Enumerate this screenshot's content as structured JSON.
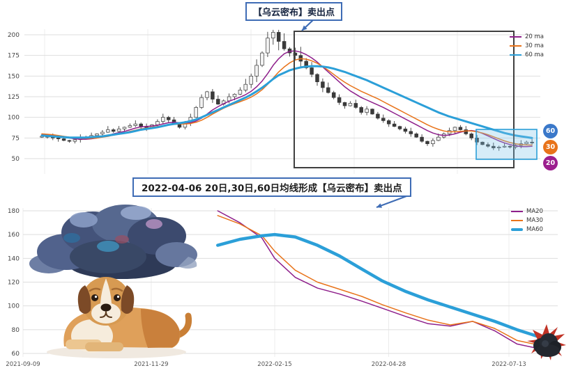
{
  "callouts": {
    "top": "【乌云密布】卖出点",
    "mid": "2022-04-06 20日,30日,60日均线形成【乌云密布】卖出点"
  },
  "badges": [
    {
      "label": "60",
      "color": "#3a78c9"
    },
    {
      "label": "30",
      "color": "#e8731a"
    },
    {
      "label": "20",
      "color": "#9c1f8e"
    }
  ],
  "colors": {
    "annotation": "#3e6cb5",
    "grid": "#dedede",
    "grid_light": "#ececec",
    "axis_text": "#444444",
    "box_outline": "#3f3f3f",
    "highlight_fill": "#7fc4e8"
  },
  "chart_data": [
    {
      "type": "candlestick",
      "title": "",
      "y_ticks": [
        200,
        175,
        150,
        125,
        100,
        75,
        50
      ],
      "ylim": [
        40,
        210
      ],
      "grid": true,
      "legend_position": "top-right",
      "candle_up_color": "#f2f2f2",
      "candle_down_color": "#3a3a3a",
      "highlight_box_color": "#2b9fd8",
      "series": [
        {
          "name": "price",
          "kind": "candles",
          "values": [
            77,
            76,
            75,
            74,
            72,
            71,
            73,
            75,
            76,
            78,
            80,
            82,
            85,
            83,
            86,
            88,
            90,
            92,
            89,
            87,
            91,
            95,
            100,
            97,
            92,
            88,
            93,
            100,
            112,
            124,
            131,
            122,
            116,
            120,
            125,
            128,
            133,
            140,
            150,
            163,
            178,
            196,
            203,
            192,
            183,
            178,
            175,
            168,
            160,
            152,
            143,
            136,
            130,
            124,
            118,
            114,
            117,
            112,
            106,
            110,
            104,
            99,
            96,
            92,
            89,
            86,
            83,
            80,
            76,
            71,
            68,
            72,
            76,
            80,
            84,
            88,
            85,
            80,
            75,
            70,
            67,
            65,
            63,
            64,
            65,
            64,
            66,
            68,
            70,
            69
          ]
        },
        {
          "name": "20 ma",
          "color": "#8e1f8b",
          "values": [
            79,
            78.5,
            78,
            77,
            76,
            75,
            74,
            73.5,
            73.5,
            74,
            75,
            76.5,
            78,
            80,
            81.5,
            83,
            85,
            87,
            88.5,
            89,
            89.5,
            90.5,
            92,
            93.5,
            94,
            93.5,
            93,
            93.5,
            95.5,
            99,
            104,
            109,
            113,
            116.5,
            119.5,
            122,
            124.5,
            127.5,
            131.5,
            137,
            144,
            153,
            163,
            171,
            177,
            180,
            180.5,
            179,
            176,
            172,
            167,
            161,
            155,
            149,
            143,
            137,
            132,
            128,
            124,
            121,
            118,
            115,
            112,
            108.5,
            105,
            101.5,
            98,
            94.5,
            91,
            87.5,
            84,
            81,
            79,
            78,
            78.5,
            80,
            82,
            83.5,
            84,
            83,
            80.5,
            77.5,
            74.5,
            71.5,
            69,
            67,
            65.5,
            64.5,
            64.5,
            65
          ]
        },
        {
          "name": "30 ma",
          "color": "#e8731a",
          "values": [
            80,
            79.5,
            79,
            78,
            77,
            76,
            75.5,
            75,
            74.5,
            74.5,
            75,
            76,
            77,
            78.5,
            80,
            81.5,
            83,
            84.5,
            86,
            87,
            88,
            89,
            90,
            91,
            91.5,
            92,
            92,
            92.5,
            94,
            96.5,
            100,
            104,
            107.5,
            111,
            114,
            116.5,
            119,
            121.5,
            124.5,
            128.5,
            133.5,
            140,
            147.5,
            155,
            161,
            166,
            169.5,
            171,
            170.5,
            168.5,
            165.5,
            161.5,
            157,
            152,
            147,
            142.5,
            138.5,
            135,
            131.5,
            128.5,
            125.5,
            122.5,
            119,
            115.5,
            112,
            108.5,
            105,
            101.5,
            98,
            94.5,
            91,
            88,
            85.5,
            83.5,
            82.5,
            82.5,
            83,
            83.5,
            83.5,
            82.5,
            81,
            79,
            76.5,
            74,
            71.5,
            69.5,
            68,
            67,
            66.5,
            66.5
          ]
        },
        {
          "name": "60 ma",
          "color": "#2b9fd8",
          "values": [
            78,
            77.5,
            77,
            76.5,
            76,
            75.5,
            75.5,
            75.5,
            75.5,
            76,
            76.5,
            77,
            78,
            79,
            80,
            81,
            82,
            83.5,
            85,
            86,
            87,
            88,
            89.5,
            91,
            92,
            93,
            94,
            95.5,
            97.5,
            100,
            103,
            106,
            109,
            112,
            115,
            118,
            121,
            124,
            127.5,
            131.5,
            136,
            141,
            146.5,
            151,
            154,
            157,
            159,
            160.5,
            161.5,
            162,
            162,
            161.5,
            160.5,
            159,
            157,
            155,
            152.5,
            150,
            147.5,
            145,
            142,
            139,
            136,
            133,
            130,
            127,
            124,
            121,
            118,
            115,
            112,
            109,
            106,
            103.5,
            101,
            99,
            97,
            95,
            93,
            91,
            89,
            87,
            85,
            83,
            81,
            79.5,
            78,
            77,
            76,
            75
          ]
        }
      ]
    },
    {
      "type": "line",
      "title": "",
      "x_ticks": [
        "2021-09-09",
        "2021-11-29",
        "2022-02-15",
        "2022-04-28",
        "2022-07-13"
      ],
      "y_ticks": [
        180,
        160,
        140,
        120,
        100,
        80,
        60
      ],
      "ylim": [
        55,
        185
      ],
      "grid": true,
      "legend_position": "top-right",
      "x": [
        "2022-01-10",
        "2022-01-24",
        "2022-02-07",
        "2022-02-15",
        "2022-02-28",
        "2022-03-14",
        "2022-03-28",
        "2022-04-11",
        "2022-04-24",
        "2022-05-09",
        "2022-05-23",
        "2022-06-06",
        "2022-06-20",
        "2022-07-04",
        "2022-07-18",
        "2022-08-01",
        "2022-08-08"
      ],
      "series": [
        {
          "name": "MA20",
          "color": "#8e1f8b",
          "values": [
            180,
            170,
            157,
            140,
            124,
            115,
            110,
            104,
            98,
            91,
            85,
            83,
            87,
            79,
            68,
            64,
            65
          ]
        },
        {
          "name": "MA30",
          "color": "#e8731a",
          "values": [
            176,
            169,
            159,
            146,
            130,
            120,
            114,
            108,
            101,
            94,
            88,
            84,
            87,
            81,
            71,
            67,
            68
          ]
        },
        {
          "name": "MA60",
          "color": "#2b9fd8",
          "values": [
            151,
            156,
            159,
            160,
            158,
            151,
            142,
            131,
            121,
            112,
            105,
            99,
            93,
            87,
            80,
            74,
            72
          ]
        }
      ]
    }
  ]
}
